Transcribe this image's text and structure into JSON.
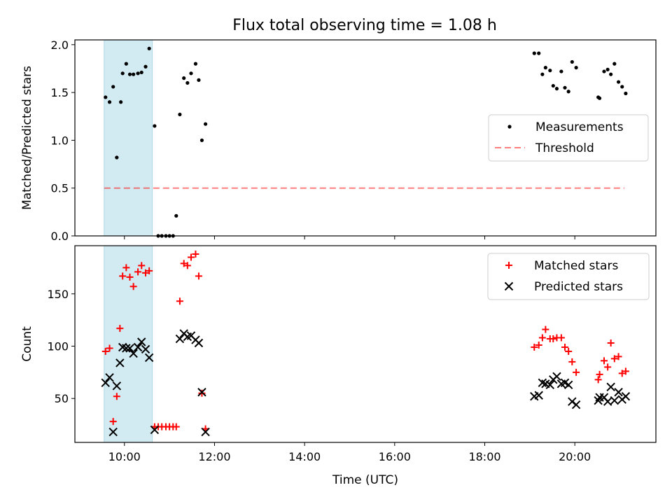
{
  "title": "Flux total observing time = 1.08 h",
  "colors": {
    "measurement": "#000000",
    "threshold": "#ff0000",
    "matched": "#ff0000",
    "predicted": "#000000",
    "shade": "#add8e6"
  },
  "chart_data": [
    {
      "type": "scatter",
      "ylabel": "Matched/Predicted stars",
      "x_unit": "hours UTC",
      "xlim": [
        8.9,
        21.8
      ],
      "ylim": [
        0,
        2.05
      ],
      "yticks": [
        0.0,
        0.5,
        1.0,
        1.5,
        2.0
      ],
      "ytick_labels": [
        "0.0",
        "0.5",
        "1.0",
        "1.5",
        "2.0"
      ],
      "shaded_x": [
        9.55,
        10.62
      ],
      "legend_position": "center-right",
      "threshold": {
        "name": "Threshold",
        "value": 0.5,
        "x": [
          9.55,
          21.1
        ]
      },
      "series": [
        {
          "name": "Measurements",
          "points": [
            [
              9.58,
              1.45
            ],
            [
              9.67,
              1.4
            ],
            [
              9.75,
              1.56
            ],
            [
              9.83,
              0.82
            ],
            [
              9.92,
              1.4
            ],
            [
              9.96,
              1.7
            ],
            [
              10.04,
              1.8
            ],
            [
              10.12,
              1.69
            ],
            [
              10.2,
              1.69
            ],
            [
              10.3,
              1.7
            ],
            [
              10.38,
              1.71
            ],
            [
              10.47,
              1.77
            ],
            [
              10.55,
              1.96
            ],
            [
              10.67,
              1.15
            ],
            [
              10.75,
              0.0
            ],
            [
              10.83,
              0.0
            ],
            [
              10.92,
              0.0
            ],
            [
              11.0,
              0.0
            ],
            [
              11.08,
              0.0
            ],
            [
              11.15,
              0.21
            ],
            [
              11.23,
              1.27
            ],
            [
              11.32,
              1.65
            ],
            [
              11.4,
              1.6
            ],
            [
              11.48,
              1.7
            ],
            [
              11.58,
              1.8
            ],
            [
              11.65,
              1.63
            ],
            [
              11.72,
              1.0
            ],
            [
              11.8,
              1.17
            ],
            [
              19.1,
              1.91
            ],
            [
              19.2,
              1.91
            ],
            [
              19.28,
              1.69
            ],
            [
              19.35,
              1.76
            ],
            [
              19.45,
              1.73
            ],
            [
              19.52,
              1.57
            ],
            [
              19.6,
              1.54
            ],
            [
              19.7,
              1.72
            ],
            [
              19.78,
              1.55
            ],
            [
              19.86,
              1.51
            ],
            [
              19.94,
              1.82
            ],
            [
              20.03,
              1.76
            ],
            [
              20.52,
              1.45
            ],
            [
              20.55,
              1.44
            ],
            [
              20.65,
              1.72
            ],
            [
              20.73,
              1.74
            ],
            [
              20.8,
              1.69
            ],
            [
              20.88,
              1.8
            ],
            [
              20.97,
              1.61
            ],
            [
              21.05,
              1.56
            ],
            [
              21.13,
              1.49
            ]
          ]
        }
      ]
    },
    {
      "type": "scatter",
      "xlabel": "Time (UTC)",
      "ylabel": "Count",
      "x_unit": "hours UTC",
      "xlim": [
        8.9,
        21.8
      ],
      "ylim": [
        8,
        196
      ],
      "yticks": [
        50,
        100,
        150
      ],
      "ytick_labels": [
        "50",
        "100",
        "150"
      ],
      "xticks": [
        10,
        12,
        14,
        16,
        18,
        20
      ],
      "xtick_labels": [
        "10:00",
        "12:00",
        "14:00",
        "16:00",
        "18:00",
        "20:00"
      ],
      "shaded_x": [
        9.55,
        10.62
      ],
      "legend_position": "top-right",
      "series": [
        {
          "name": "Matched stars",
          "points": [
            [
              9.58,
              95
            ],
            [
              9.67,
              98
            ],
            [
              9.75,
              28
            ],
            [
              9.83,
              52
            ],
            [
              9.9,
              117
            ],
            [
              9.96,
              167
            ],
            [
              10.04,
              175
            ],
            [
              10.12,
              166
            ],
            [
              10.2,
              157
            ],
            [
              10.3,
              171
            ],
            [
              10.38,
              177
            ],
            [
              10.47,
              170
            ],
            [
              10.55,
              172
            ],
            [
              10.67,
              23
            ],
            [
              10.75,
              23
            ],
            [
              10.83,
              23
            ],
            [
              10.92,
              23
            ],
            [
              11.0,
              23
            ],
            [
              11.08,
              23
            ],
            [
              11.15,
              23
            ],
            [
              11.23,
              143
            ],
            [
              11.32,
              179
            ],
            [
              11.4,
              177
            ],
            [
              11.48,
              185
            ],
            [
              11.58,
              188
            ],
            [
              11.65,
              167
            ],
            [
              11.72,
              55
            ],
            [
              11.8,
              21
            ],
            [
              19.1,
              99
            ],
            [
              19.2,
              101
            ],
            [
              19.28,
              108
            ],
            [
              19.35,
              116
            ],
            [
              19.45,
              107
            ],
            [
              19.52,
              107
            ],
            [
              19.6,
              108
            ],
            [
              19.7,
              108
            ],
            [
              19.78,
              99
            ],
            [
              19.86,
              95
            ],
            [
              19.94,
              85
            ],
            [
              20.03,
              75
            ],
            [
              20.52,
              68
            ],
            [
              20.55,
              73
            ],
            [
              20.65,
              86
            ],
            [
              20.73,
              80
            ],
            [
              20.8,
              103
            ],
            [
              20.88,
              88
            ],
            [
              20.97,
              90
            ],
            [
              21.05,
              74
            ],
            [
              21.13,
              76
            ]
          ]
        },
        {
          "name": "Predicted stars",
          "points": [
            [
              9.58,
              65
            ],
            [
              9.67,
              70
            ],
            [
              9.75,
              18
            ],
            [
              9.83,
              62
            ],
            [
              9.9,
              84
            ],
            [
              9.96,
              99
            ],
            [
              10.04,
              98
            ],
            [
              10.12,
              98
            ],
            [
              10.2,
              93
            ],
            [
              10.3,
              99
            ],
            [
              10.38,
              104
            ],
            [
              10.47,
              97
            ],
            [
              10.55,
              89
            ],
            [
              10.67,
              20
            ],
            [
              11.23,
              107
            ],
            [
              11.32,
              112
            ],
            [
              11.4,
              109
            ],
            [
              11.48,
              110
            ],
            [
              11.58,
              106
            ],
            [
              11.65,
              103
            ],
            [
              11.72,
              56
            ],
            [
              11.8,
              18
            ],
            [
              19.1,
              52
            ],
            [
              19.2,
              53
            ],
            [
              19.28,
              65
            ],
            [
              19.35,
              64
            ],
            [
              19.45,
              63
            ],
            [
              19.52,
              68
            ],
            [
              19.6,
              71
            ],
            [
              19.7,
              64
            ],
            [
              19.78,
              65
            ],
            [
              19.86,
              63
            ],
            [
              19.94,
              47
            ],
            [
              20.03,
              44
            ],
            [
              20.52,
              48
            ],
            [
              20.55,
              51
            ],
            [
              20.65,
              51
            ],
            [
              20.73,
              47
            ],
            [
              20.8,
              61
            ],
            [
              20.88,
              48
            ],
            [
              20.97,
              56
            ],
            [
              21.05,
              49
            ],
            [
              21.13,
              52
            ]
          ]
        }
      ]
    }
  ]
}
